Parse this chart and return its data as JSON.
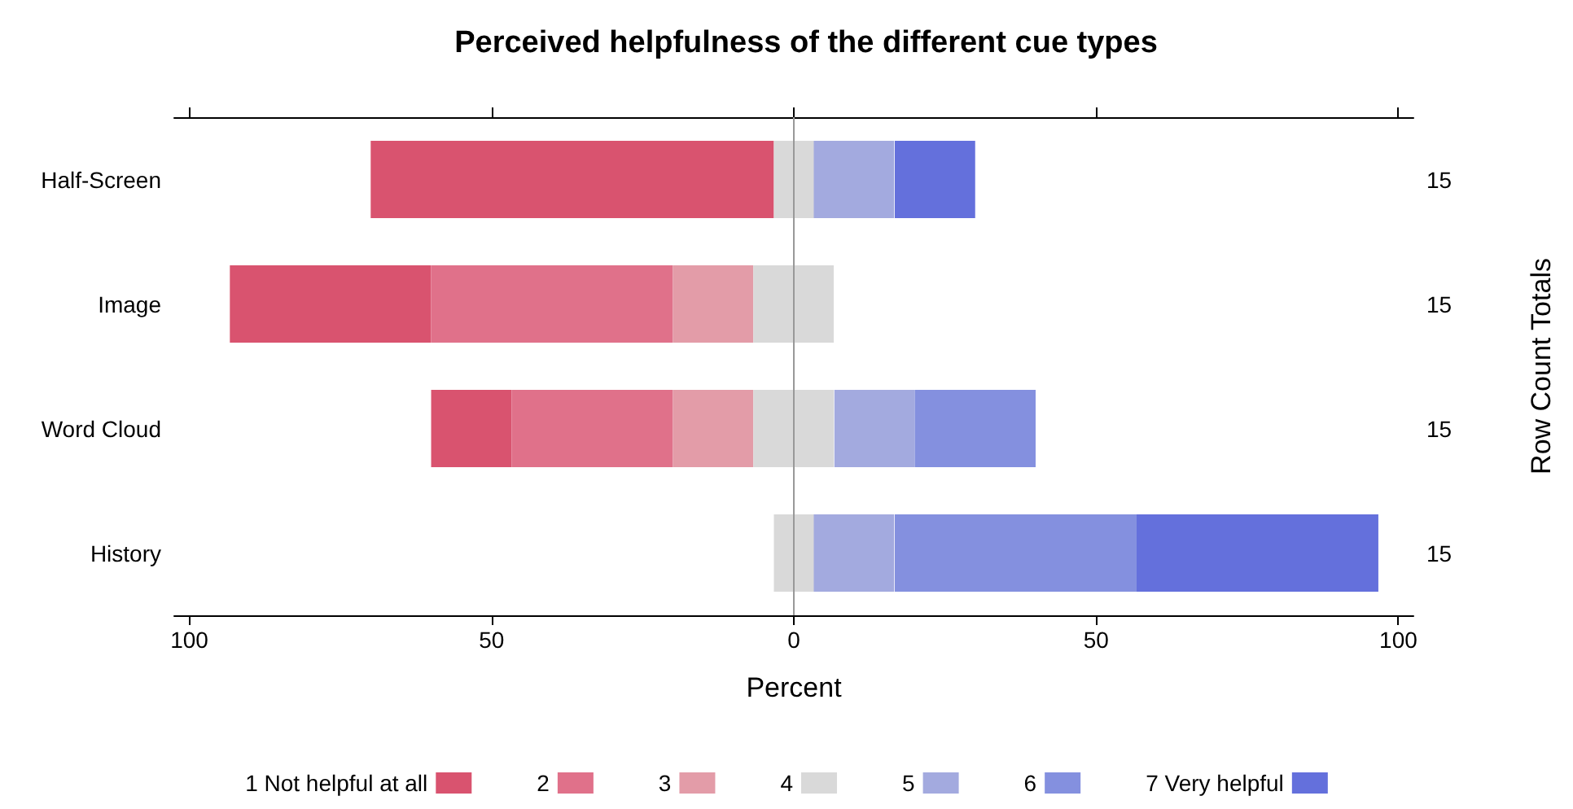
{
  "chart_data": {
    "type": "bar",
    "orientation": "horizontal",
    "stacked": true,
    "title": "Perceived helpfulness of the different cue types",
    "xlabel": "Percent",
    "y2label": "Row Count Totals",
    "categories": [
      "Half-Screen",
      "Image",
      "Word Cloud",
      "History"
    ],
    "series": [
      {
        "name": "1 Not helpful at all",
        "color": "#d9536f",
        "values": [
          66.7,
          33.3,
          13.3,
          null
        ],
        "base": [
          -70,
          -93.3,
          -60,
          null
        ]
      },
      {
        "name": "2",
        "color": "#e0718a",
        "values": [
          null,
          40,
          26.7,
          null
        ],
        "base": [
          null,
          -60,
          -46.7,
          null
        ]
      },
      {
        "name": "3",
        "color": "#e39ca8",
        "values": [
          null,
          13.3,
          13.3,
          null
        ],
        "base": [
          null,
          -20,
          -20,
          null
        ]
      },
      {
        "name": "4",
        "color": "#d9d9d9",
        "values": [
          6.7,
          13.3,
          13.3,
          6.7
        ],
        "base": [
          -3.3,
          -6.7,
          -6.7,
          -3.3
        ]
      },
      {
        "name": "5",
        "color": "#a3aadf",
        "values": [
          13.3,
          null,
          13.3,
          13.3
        ],
        "base": [
          3.3,
          null,
          6.7,
          3.3
        ]
      },
      {
        "name": "6",
        "color": "#8490df",
        "values": [
          null,
          null,
          20,
          40
        ],
        "base": [
          null,
          null,
          20,
          16.7
        ]
      },
      {
        "name": "7 Very helpful",
        "color": "#6470dc",
        "values": [
          13.3,
          null,
          null,
          40
        ],
        "base": [
          16.7,
          null,
          null,
          56.7
        ]
      }
    ],
    "annotations": [
      "15",
      "15",
      "15",
      "15"
    ],
    "xlim": [
      -102.5,
      102.5
    ],
    "xticks": [
      {
        "value": -100,
        "label": "100"
      },
      {
        "value": -50,
        "label": "50"
      },
      0,
      50,
      100
    ],
    "ref_lines": [
      {
        "axis": "x",
        "value": 0,
        "color": "#999999"
      }
    ],
    "grid": false,
    "legend": "bottom"
  }
}
